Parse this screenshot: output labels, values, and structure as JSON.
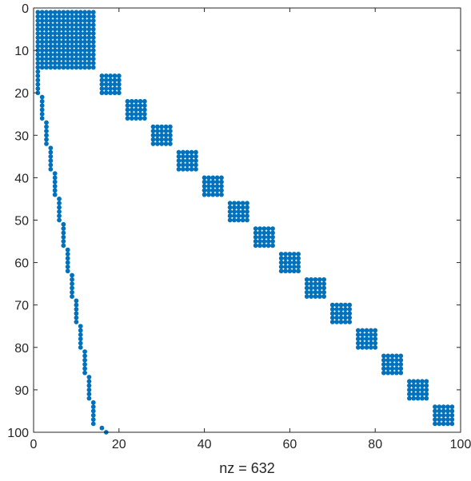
{
  "chart_data": {
    "type": "scatter",
    "subtype": "sparsity-pattern",
    "title": "",
    "xlabel": "nz = 632",
    "ylabel": "",
    "xlim": [
      0,
      100
    ],
    "ylim": [
      0,
      100
    ],
    "y_axis_reversed": true,
    "grid": false,
    "marker_color": "#0072BD",
    "xticks": [
      0,
      20,
      40,
      60,
      80,
      100
    ],
    "xtick_labels": [
      "0",
      "20",
      "40",
      "60",
      "80",
      "100"
    ],
    "yticks": [
      0,
      10,
      20,
      30,
      40,
      50,
      60,
      70,
      80,
      90,
      100
    ],
    "ytick_labels": [
      "0",
      "10",
      "20",
      "30",
      "40",
      "50",
      "60",
      "70",
      "80",
      "90",
      "100"
    ],
    "blocks": [
      {
        "cols": [
          1,
          14
        ],
        "rows": [
          1,
          14
        ]
      },
      {
        "cols": [
          16,
          20
        ],
        "rows": [
          16,
          20
        ]
      },
      {
        "cols": [
          22,
          26
        ],
        "rows": [
          22,
          26
        ]
      },
      {
        "cols": [
          28,
          32
        ],
        "rows": [
          28,
          32
        ]
      },
      {
        "cols": [
          34,
          38
        ],
        "rows": [
          34,
          38
        ]
      },
      {
        "cols": [
          40,
          44
        ],
        "rows": [
          40,
          44
        ]
      },
      {
        "cols": [
          46,
          50
        ],
        "rows": [
          46,
          50
        ]
      },
      {
        "cols": [
          52,
          56
        ],
        "rows": [
          52,
          56
        ]
      },
      {
        "cols": [
          58,
          62
        ],
        "rows": [
          58,
          62
        ]
      },
      {
        "cols": [
          64,
          68
        ],
        "rows": [
          64,
          68
        ]
      },
      {
        "cols": [
          70,
          74
        ],
        "rows": [
          70,
          74
        ]
      },
      {
        "cols": [
          76,
          80
        ],
        "rows": [
          76,
          80
        ]
      },
      {
        "cols": [
          82,
          86
        ],
        "rows": [
          82,
          86
        ]
      },
      {
        "cols": [
          88,
          92
        ],
        "rows": [
          88,
          92
        ]
      },
      {
        "cols": [
          94,
          98
        ],
        "rows": [
          94,
          98
        ]
      }
    ],
    "column_segments": [
      {
        "col": 1,
        "rows": [
          15,
          20
        ]
      },
      {
        "col": 2,
        "rows": [
          21,
          26
        ]
      },
      {
        "col": 3,
        "rows": [
          27,
          32
        ]
      },
      {
        "col": 4,
        "rows": [
          33,
          38
        ]
      },
      {
        "col": 5,
        "rows": [
          39,
          44
        ]
      },
      {
        "col": 6,
        "rows": [
          45,
          50
        ]
      },
      {
        "col": 7,
        "rows": [
          51,
          56
        ]
      },
      {
        "col": 8,
        "rows": [
          57,
          62
        ]
      },
      {
        "col": 9,
        "rows": [
          63,
          68
        ]
      },
      {
        "col": 10,
        "rows": [
          69,
          74
        ]
      },
      {
        "col": 11,
        "rows": [
          75,
          80
        ]
      },
      {
        "col": 12,
        "rows": [
          81,
          86
        ]
      },
      {
        "col": 13,
        "rows": [
          87,
          92
        ]
      },
      {
        "col": 14,
        "rows": [
          93,
          98
        ]
      }
    ],
    "single_points": [
      {
        "col": 16,
        "row": 99
      },
      {
        "col": 17,
        "row": 100
      }
    ]
  }
}
